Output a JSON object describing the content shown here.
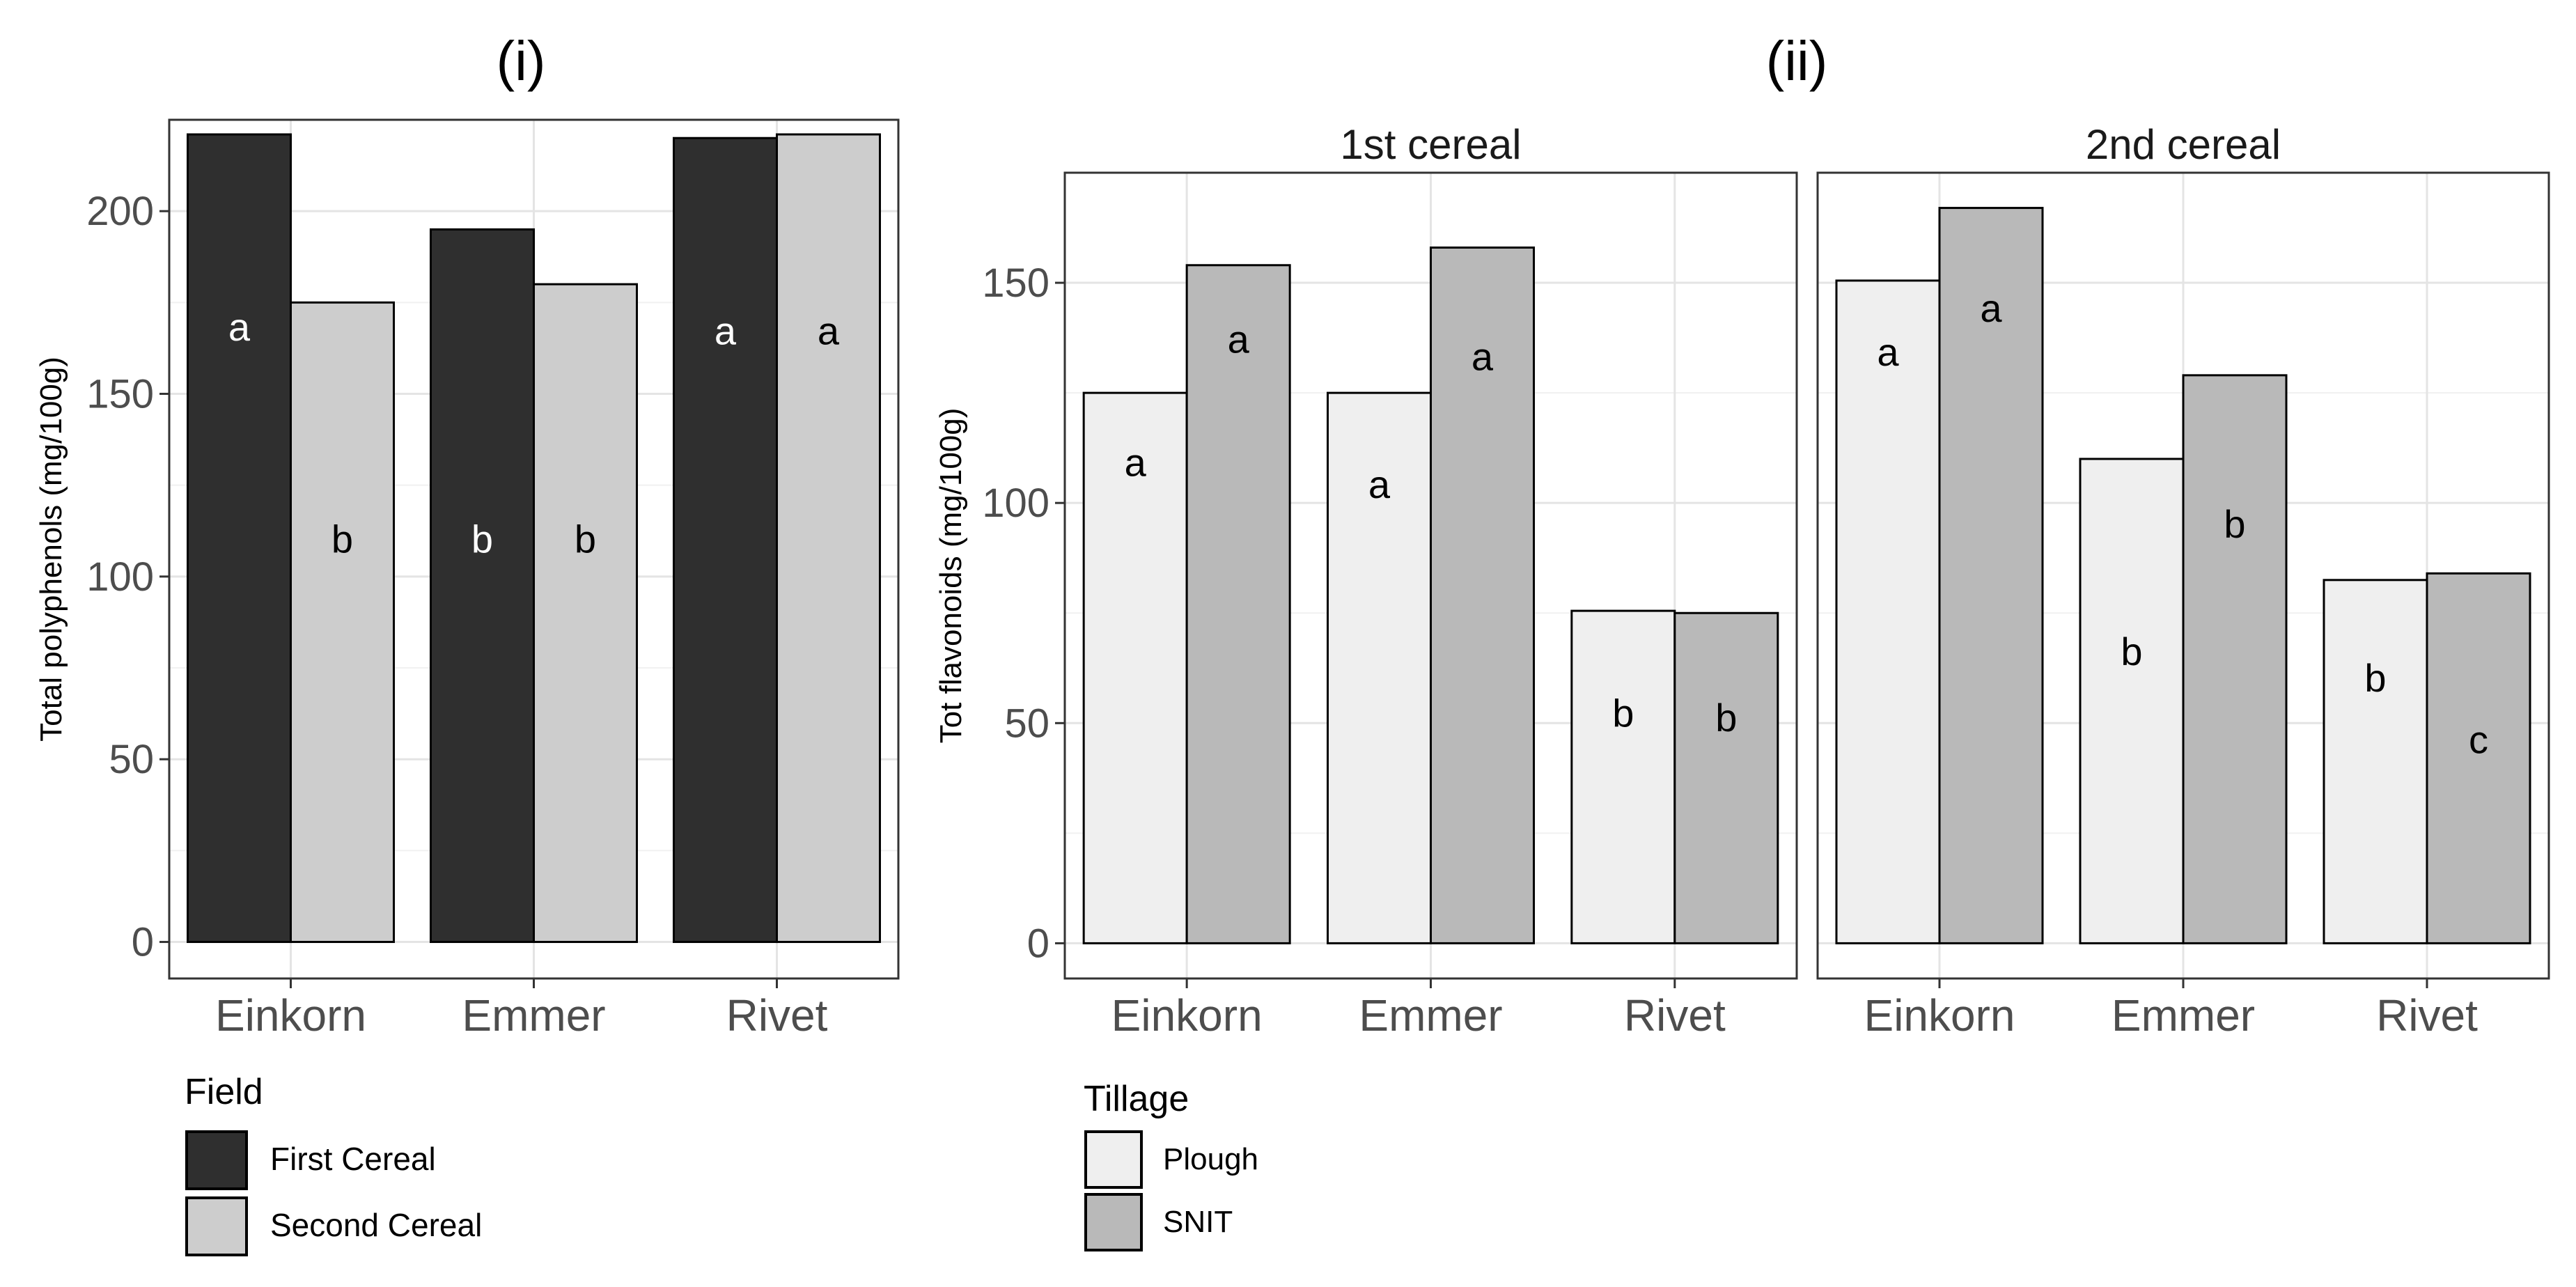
{
  "chart_data": [
    {
      "type": "bar",
      "panel_label": "(i)",
      "ylabel": "Total polyphenols (mg/100g)",
      "xlabel": "",
      "ylim": [
        -10,
        225
      ],
      "yticks": [
        0,
        50,
        100,
        150,
        200
      ],
      "categories": [
        "Einkorn",
        "Emmer",
        "Rivet"
      ],
      "series": [
        {
          "name": "First Cereal",
          "color": "#2f2f2f",
          "values": [
            221,
            195,
            220
          ],
          "letters": [
            "a",
            "b",
            "a"
          ],
          "letter_positions": [
            168,
            110,
            167
          ],
          "letter_color": "#ffffff"
        },
        {
          "name": "Second Cereal",
          "color": "#cdcdcd",
          "values": [
            175,
            180,
            221
          ],
          "letters": [
            "b",
            "b",
            "a"
          ],
          "letter_positions": [
            110,
            110,
            167
          ],
          "letter_color": "#000000"
        }
      ],
      "legend": {
        "title": "Field",
        "items": [
          "First Cereal",
          "Second Cereal"
        ],
        "placement": "bottom-left"
      },
      "grid": true
    },
    {
      "type": "bar",
      "panel_label": "(ii)",
      "ylabel": "Tot flavonoids (mg/100g)",
      "xlabel": "",
      "ylim": [
        -8,
        175
      ],
      "yticks": [
        0,
        50,
        100,
        150
      ],
      "facets": [
        {
          "title": "1st cereal",
          "categories": [
            "Einkorn",
            "Emmer",
            "Rivet"
          ],
          "series": [
            {
              "name": "Plough",
              "color": "#efefef",
              "values": [
                125,
                125,
                75.5
              ],
              "letters": [
                "a",
                "a",
                "b"
              ],
              "letter_positions": [
                109,
                104,
                52
              ]
            },
            {
              "name": "SNIT",
              "color": "#b9b9b9",
              "values": [
                154,
                158,
                75
              ],
              "letters": [
                "a",
                "a",
                "b"
              ],
              "letter_positions": [
                137,
                133,
                51
              ]
            }
          ]
        },
        {
          "title": "2nd cereal",
          "categories": [
            "Einkorn",
            "Emmer",
            "Rivet"
          ],
          "series": [
            {
              "name": "Plough",
              "color": "#efefef",
              "values": [
                150.5,
                110,
                82.5
              ],
              "letters": [
                "a",
                "b",
                "b"
              ],
              "letter_positions": [
                134,
                66,
                60
              ]
            },
            {
              "name": "SNIT",
              "color": "#b9b9b9",
              "values": [
                167,
                129,
                84
              ],
              "letters": [
                "a",
                "b",
                "c"
              ],
              "letter_positions": [
                144,
                95,
                46
              ]
            }
          ]
        }
      ],
      "legend": {
        "title": "Tillage",
        "items": [
          "Plough",
          "SNIT"
        ],
        "placement": "bottom-left"
      },
      "grid": true
    }
  ]
}
